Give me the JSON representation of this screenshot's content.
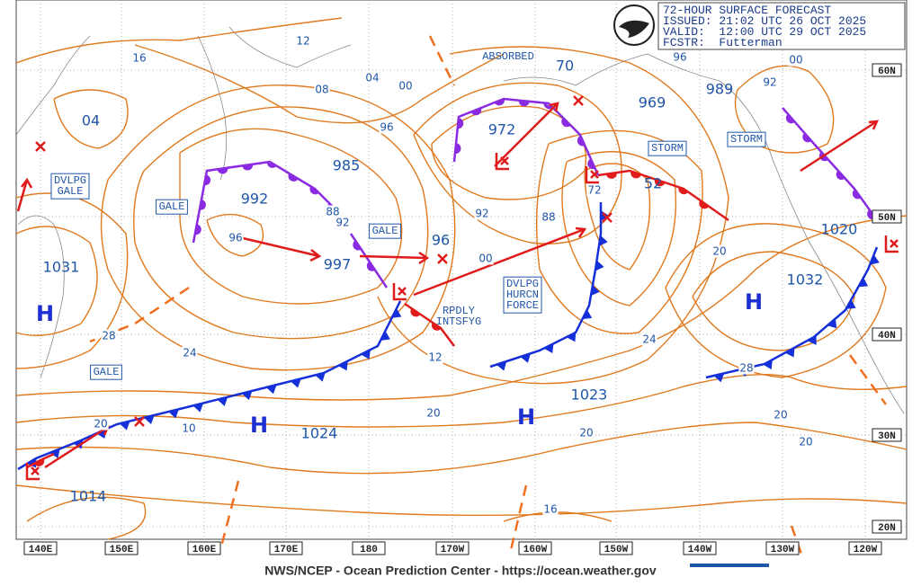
{
  "header": {
    "title": "72-HOUR SURFACE FORECAST",
    "issued": "ISSUED: 21:02 UTC 26 OCT 2025",
    "valid": "VALID:  12:00 UTC 29 OCT 2025",
    "forecaster": "FCSTR:  Futterman"
  },
  "longitudes": [
    "140E",
    "150E",
    "160E",
    "170E",
    "180",
    "170W",
    "160W",
    "150W",
    "140W",
    "130W",
    "120W"
  ],
  "latitudes": [
    "60N",
    "50N",
    "40N",
    "30N",
    "20N"
  ],
  "pressure_centers": [
    "992",
    "985",
    "972",
    "969",
    "989",
    "997",
    "1031",
    "1024",
    "1014",
    "1023",
    "1020",
    "1032",
    "52",
    "70",
    "04",
    "96"
  ],
  "isobar_labels": [
    "16",
    "12",
    "08",
    "04",
    "00",
    "96",
    "88",
    "92",
    "96",
    "92",
    "88",
    "00",
    "72",
    "12",
    "24",
    "28",
    "20",
    "10",
    "20",
    "20",
    "24",
    "20",
    "28",
    "20",
    "20",
    "16",
    "00",
    "96",
    "92"
  ],
  "highs": [
    "H",
    "H",
    "H",
    "H"
  ],
  "warnings": [
    [
      "DVLPG",
      "GALE"
    ],
    [
      "GALE"
    ],
    [
      "GALE"
    ],
    [
      "GALE"
    ],
    [
      "STORM"
    ],
    [
      "STORM"
    ],
    [
      "DVLPG",
      "HURCN",
      "FORCE"
    ]
  ],
  "notes": [
    [
      "RPDLY",
      "INTSFYG"
    ],
    [
      "ABSORBED"
    ]
  ],
  "footer": "NWS/NCEP - Ocean Prediction Center - https://ocean.weather.gov"
}
